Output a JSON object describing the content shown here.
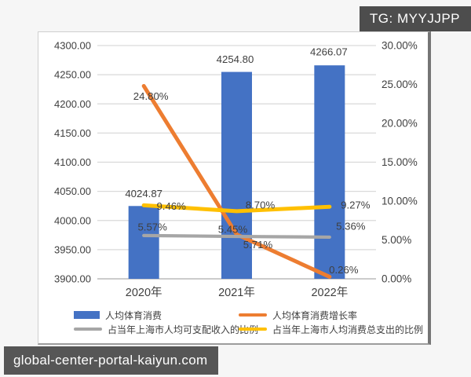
{
  "badges": {
    "tg": "TG: MYYJJPP",
    "watermark": "global-center-portal-kaiyun.com"
  },
  "colors": {
    "grid": "#D9D9D9",
    "axis_line": "#ADADAD",
    "text": "#3F3F3F",
    "panel_bg": "#FFFFFF",
    "page_bg": "#F6F6F6",
    "badge_bg": "#4D4D4D",
    "bar_blue": "#4472C4",
    "line_orange": "#ED7D31",
    "line_gray": "#A6A6A6",
    "line_yellow": "#FFC000"
  },
  "chart_data": {
    "type": "bar",
    "subtype": "combo-bar-line-dual-axis",
    "title": "",
    "grid": true,
    "legend_position": "bottom",
    "categories": [
      "2020年",
      "2021年",
      "2022年"
    ],
    "left_axis": {
      "min": 3900,
      "max": 4300,
      "step": 50,
      "ticks": [
        "4300.00",
        "4250.00",
        "4200.00",
        "4150.00",
        "4100.00",
        "4050.00",
        "4000.00",
        "3950.00",
        "3900.00"
      ]
    },
    "right_axis": {
      "min": 0,
      "max": 30,
      "step": 5,
      "ticks": [
        "30.00%",
        "25.00%",
        "20.00%",
        "15.00%",
        "10.00%",
        "5.00%",
        "0.00%"
      ]
    },
    "series": [
      {
        "name": "人均体育消费",
        "type": "bar",
        "axis": "left",
        "color": "#4472C4",
        "values": [
          4024.87,
          4254.8,
          4266.07
        ],
        "labels": [
          "4024.87",
          "4254.80",
          "4266.07"
        ]
      },
      {
        "name": "人均体育消费增长率",
        "type": "line",
        "axis": "right",
        "color": "#ED7D31",
        "values": [
          24.8,
          5.71,
          0.26
        ],
        "labels": [
          "24.80%",
          "5.71%",
          "0.26%"
        ]
      },
      {
        "name": "占当年上海市人均可支配收入的比例",
        "type": "line",
        "axis": "right",
        "color": "#A6A6A6",
        "values": [
          5.57,
          5.45,
          5.36
        ],
        "labels": [
          "5.57%",
          "5.45%",
          "5.36%"
        ]
      },
      {
        "name": "占当年上海市人均消费总支出的比例",
        "type": "line",
        "axis": "right",
        "color": "#FFC000",
        "values": [
          9.46,
          8.7,
          9.27
        ],
        "labels": [
          "9.46%",
          "8.70%",
          "9.27%"
        ]
      }
    ]
  }
}
